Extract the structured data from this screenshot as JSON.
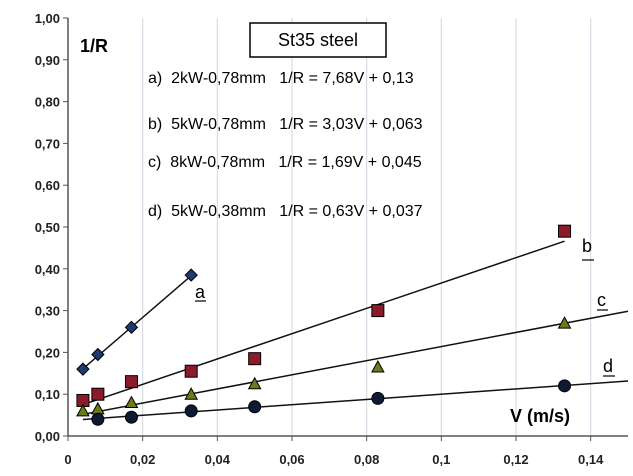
{
  "chart_data": {
    "type": "scatter",
    "title": "St35 steel",
    "xlabel": "V (m/s)",
    "ylabel": "1/R",
    "xlim": [
      0,
      0.15
    ],
    "ylim": [
      0,
      1.0
    ],
    "x_ticks": [
      "0",
      "0,02",
      "0,04",
      "0,06",
      "0,08",
      "0,1",
      "0,12",
      "0,14"
    ],
    "y_ticks": [
      "0,00",
      "0,10",
      "0,20",
      "0,30",
      "0,40",
      "0,50",
      "0,60",
      "0,70",
      "0,80",
      "0,90",
      "1,00"
    ],
    "grid": "vertical",
    "legend_entries": [
      "a)  2kW-0,78mm   1/R = 7,68V + 0,13",
      "b)  5kW-0,78mm   1/R = 3,03V + 0,063",
      "c)  8kW-0,78mm   1/R = 1,69V + 0,045",
      "d)  5kW-0,38mm   1/R = 0,63V + 0,037"
    ],
    "series": [
      {
        "label": "a",
        "marker": "diamond",
        "color": "#1f3a6e",
        "x": [
          0.004,
          0.008,
          0.017,
          0.033
        ],
        "y": [
          0.16,
          0.195,
          0.26,
          0.385
        ],
        "fit_slope": 7.68,
        "fit_intercept": 0.13,
        "fit_x_range": [
          0.004,
          0.033
        ]
      },
      {
        "label": "b",
        "marker": "square",
        "color": "#8b1a2b",
        "x": [
          0.004,
          0.008,
          0.017,
          0.033,
          0.05,
          0.083,
          0.133
        ],
        "y": [
          0.085,
          0.1,
          0.13,
          0.155,
          0.185,
          0.3,
          0.49
        ],
        "fit_slope": 3.03,
        "fit_intercept": 0.063,
        "fit_x_range": [
          0.004,
          0.133
        ]
      },
      {
        "label": "c",
        "marker": "triangle",
        "color": "#6b7a1a",
        "x": [
          0.004,
          0.008,
          0.017,
          0.033,
          0.05,
          0.083,
          0.133
        ],
        "y": [
          0.06,
          0.065,
          0.08,
          0.1,
          0.125,
          0.165,
          0.27
        ],
        "fit_slope": 1.69,
        "fit_intercept": 0.045,
        "fit_x_range": [
          0.004,
          0.15
        ]
      },
      {
        "label": "d",
        "marker": "circle",
        "color": "#0d1a33",
        "x": [
          0.008,
          0.017,
          0.033,
          0.05,
          0.083,
          0.133
        ],
        "y": [
          0.04,
          0.045,
          0.06,
          0.07,
          0.09,
          0.12
        ],
        "fit_slope": 0.63,
        "fit_intercept": 0.037,
        "fit_x_range": [
          0.004,
          0.15
        ]
      }
    ]
  },
  "colors": {
    "axis": "#555555",
    "grid": "#cfd6e0",
    "fit_line": "#111111"
  }
}
